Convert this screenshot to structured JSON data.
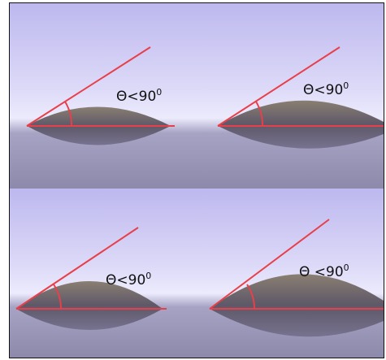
{
  "panels": [
    {
      "label": "Θ<90",
      "superscript": "0"
    },
    {
      "label": "Θ<90",
      "superscript": "0"
    },
    {
      "label": "Θ<90",
      "superscript": "0"
    },
    {
      "label": "Θ <90",
      "superscript": "0"
    }
  ]
}
